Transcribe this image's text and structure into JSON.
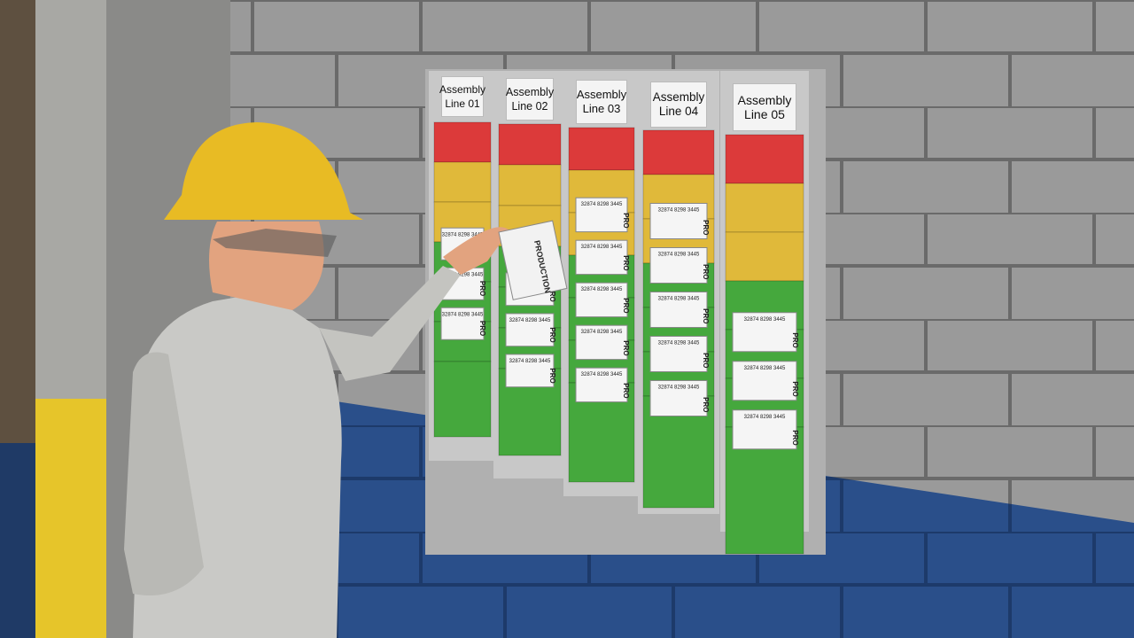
{
  "board": {
    "columns": [
      "Assembly Line 01",
      "Assembly Line 02",
      "Assembly Line 03",
      "Assembly Line 04",
      "Assembly Line 05"
    ]
  },
  "card": {
    "number": "32874 8298 3445",
    "tag": "PRO",
    "full_tag": "PRODUCTION"
  }
}
